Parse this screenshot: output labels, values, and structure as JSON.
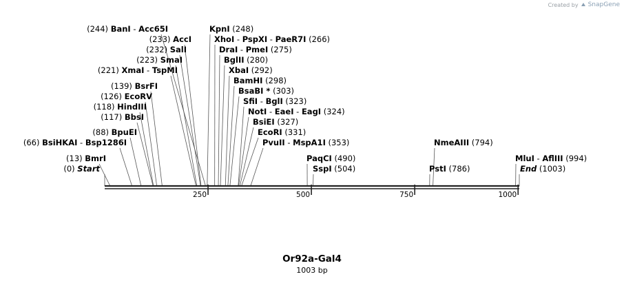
{
  "credit": {
    "prefix": "Created by",
    "brand": "SnapGene"
  },
  "map": {
    "title": "Or92a-Gal4",
    "length_label": "1003 bp",
    "length_bp": 1003,
    "ticks": [
      {
        "bp": 250,
        "label": "250"
      },
      {
        "bp": 500,
        "label": "500"
      },
      {
        "bp": 750,
        "label": "750"
      },
      {
        "bp": 1000,
        "label": "1000"
      }
    ],
    "features": [
      {
        "id": "bani",
        "names": [
          "BanI",
          "Acc65I"
        ],
        "pos_label": "(244)",
        "pos_side": "left",
        "bp": 244
      },
      {
        "id": "kpni",
        "names": [
          "KpnI"
        ],
        "pos_label": "(248)",
        "pos_side": "right",
        "bp": 248
      },
      {
        "id": "acci",
        "names": [
          "AccI"
        ],
        "pos_label": "(233)",
        "pos_side": "left",
        "bp": 233
      },
      {
        "id": "xhoi",
        "names": [
          "XhoI",
          "PspXI",
          "PaeR7I"
        ],
        "pos_label": "(266)",
        "pos_side": "right",
        "bp": 266
      },
      {
        "id": "sali",
        "names": [
          "SalI"
        ],
        "pos_label": "(232)",
        "pos_side": "left",
        "bp": 232
      },
      {
        "id": "drai",
        "names": [
          "DraI",
          "PmeI"
        ],
        "pos_label": "(275)",
        "pos_side": "right",
        "bp": 275
      },
      {
        "id": "smai",
        "names": [
          "SmaI"
        ],
        "pos_label": "(223)",
        "pos_side": "left",
        "bp": 223
      },
      {
        "id": "bglii",
        "names": [
          "BglII"
        ],
        "pos_label": "(280)",
        "pos_side": "right",
        "bp": 280
      },
      {
        "id": "xmai",
        "names": [
          "XmaI",
          "TspMI"
        ],
        "pos_label": "(221)",
        "pos_side": "left",
        "bp": 221
      },
      {
        "id": "xbai",
        "names": [
          "XbaI"
        ],
        "pos_label": "(292)",
        "pos_side": "right",
        "bp": 292
      },
      {
        "id": "bamhi",
        "names": [
          "BamHI"
        ],
        "pos_label": "(298)",
        "pos_side": "right",
        "bp": 298
      },
      {
        "id": "bsrfi",
        "names": [
          "BsrFI"
        ],
        "pos_label": "(139)",
        "pos_side": "left",
        "bp": 139
      },
      {
        "id": "bsabi",
        "names": [
          "BsaBI *"
        ],
        "pos_label": "(303)",
        "pos_side": "right",
        "bp": 303
      },
      {
        "id": "ecorv",
        "names": [
          "EcoRV"
        ],
        "pos_label": "(126)",
        "pos_side": "left",
        "bp": 126
      },
      {
        "id": "sfii",
        "names": [
          "SfiI",
          "BglI"
        ],
        "pos_label": "(323)",
        "pos_side": "right",
        "bp": 323
      },
      {
        "id": "hindiii",
        "names": [
          "HindIII"
        ],
        "pos_label": "(118)",
        "pos_side": "left",
        "bp": 118
      },
      {
        "id": "noti",
        "names": [
          "NotI",
          "EaeI",
          "EagI"
        ],
        "pos_label": "(324)",
        "pos_side": "right",
        "bp": 324
      },
      {
        "id": "bbsi",
        "names": [
          "BbsI"
        ],
        "pos_label": "(117)",
        "pos_side": "left",
        "bp": 117
      },
      {
        "id": "bsiei",
        "names": [
          "BsiEI"
        ],
        "pos_label": "(327)",
        "pos_side": "right",
        "bp": 327
      },
      {
        "id": "bpuei",
        "names": [
          "BpuEI"
        ],
        "pos_label": "(88)",
        "pos_side": "left",
        "bp": 88
      },
      {
        "id": "ecori",
        "names": [
          "EcoRI"
        ],
        "pos_label": "(331)",
        "pos_side": "right",
        "bp": 331
      },
      {
        "id": "bsihkai",
        "names": [
          "BsiHKAI",
          "Bsp1286I"
        ],
        "pos_label": "(66)",
        "pos_side": "left",
        "bp": 66
      },
      {
        "id": "pvuii",
        "names": [
          "PvuII",
          "MspA1I"
        ],
        "pos_label": "(353)",
        "pos_side": "right",
        "bp": 353
      },
      {
        "id": "nmeaiii",
        "names": [
          "NmeAIII"
        ],
        "pos_label": "(794)",
        "pos_side": "right",
        "bp": 794
      },
      {
        "id": "bmri",
        "names": [
          "BmrI"
        ],
        "pos_label": "(13)",
        "pos_side": "left",
        "bp": 13
      },
      {
        "id": "paqci",
        "names": [
          "PaqCI"
        ],
        "pos_label": "(490)",
        "pos_side": "right",
        "bp": 490
      },
      {
        "id": "mlui",
        "names": [
          "MluI",
          "AflIII"
        ],
        "pos_label": "(994)",
        "pos_side": "right",
        "bp": 994
      },
      {
        "id": "start",
        "names": [
          "Start"
        ],
        "pos_label": "(0)",
        "pos_side": "left",
        "bp": 0,
        "italic": true
      },
      {
        "id": "sspi",
        "names": [
          "SspI"
        ],
        "pos_label": "(504)",
        "pos_side": "right",
        "bp": 504
      },
      {
        "id": "psti",
        "names": [
          "PstI"
        ],
        "pos_label": "(786)",
        "pos_side": "right",
        "bp": 786
      },
      {
        "id": "end",
        "names": [
          "End"
        ],
        "pos_label": "(1003)",
        "pos_side": "right",
        "bp": 1003,
        "italic": true
      }
    ]
  }
}
